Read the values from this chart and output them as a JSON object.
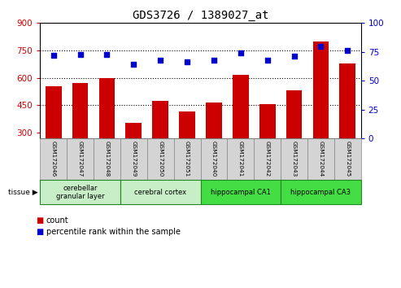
{
  "title": "GDS3726 / 1389027_at",
  "samples": [
    "GSM172046",
    "GSM172047",
    "GSM172048",
    "GSM172049",
    "GSM172050",
    "GSM172051",
    "GSM172040",
    "GSM172041",
    "GSM172042",
    "GSM172043",
    "GSM172044",
    "GSM172045"
  ],
  "counts": [
    555,
    570,
    600,
    355,
    475,
    415,
    465,
    615,
    455,
    530,
    800,
    680
  ],
  "percentiles": [
    72,
    73,
    73,
    64,
    68,
    66,
    68,
    74,
    68,
    71,
    80,
    76
  ],
  "ylim_left": [
    270,
    900
  ],
  "ylim_right": [
    0,
    100
  ],
  "yticks_left": [
    300,
    450,
    600,
    750,
    900
  ],
  "yticks_right": [
    0,
    25,
    50,
    75,
    100
  ],
  "bar_color": "#cc0000",
  "scatter_color": "#0000cc",
  "hline_values": [
    450,
    600,
    750
  ],
  "tissue_groups": [
    {
      "label": "cerebellar\ngranular layer",
      "start": 0,
      "end": 3,
      "color": "#c8eec8"
    },
    {
      "label": "cerebral cortex",
      "start": 3,
      "end": 6,
      "color": "#c8eec8"
    },
    {
      "label": "hippocampal CA1",
      "start": 6,
      "end": 9,
      "color": "#44dd44"
    },
    {
      "label": "hippocampal CA3",
      "start": 9,
      "end": 12,
      "color": "#44dd44"
    }
  ],
  "ylabel_left_color": "#cc0000",
  "ylabel_right_color": "#0000cc",
  "plot_bg_color": "#ffffff",
  "sample_box_color": "#d4d4d4",
  "title_fontsize": 10,
  "bar_bottom": 270
}
